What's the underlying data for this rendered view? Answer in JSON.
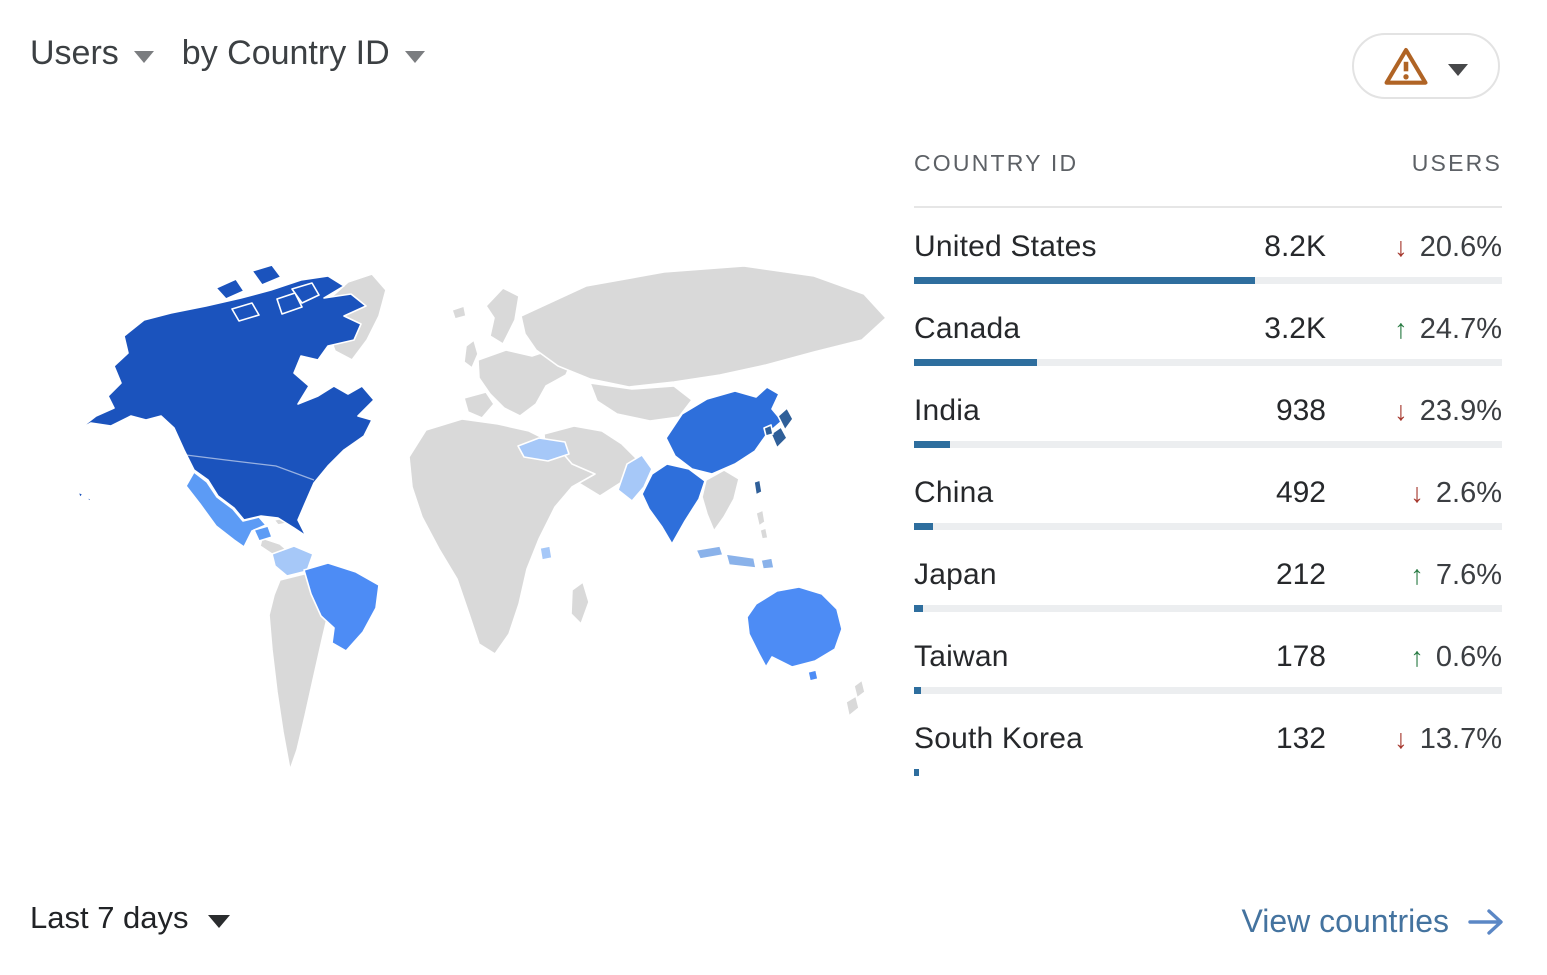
{
  "header": {
    "metric_label": "Users",
    "dimension_label": "by Country ID"
  },
  "warning_button": {
    "icon": "warning-triangle-icon",
    "caret_icon": "chevron-down-icon"
  },
  "table": {
    "columns": [
      "COUNTRY ID",
      "USERS"
    ],
    "rows": [
      {
        "country": "United States",
        "users": "8.2K",
        "arrow": "↓",
        "direction": "down",
        "change": "20.6%",
        "bar_pct": 58
      },
      {
        "country": "Canada",
        "users": "3.2K",
        "arrow": "↑",
        "direction": "up",
        "change": "24.7%",
        "bar_pct": 21
      },
      {
        "country": "India",
        "users": "938",
        "arrow": "↓",
        "direction": "down",
        "change": "23.9%",
        "bar_pct": 6.2
      },
      {
        "country": "China",
        "users": "492",
        "arrow": "↓",
        "direction": "down",
        "change": "2.6%",
        "bar_pct": 3.3
      },
      {
        "country": "Japan",
        "users": "212",
        "arrow": "↑",
        "direction": "up",
        "change": "7.6%",
        "bar_pct": 1.5
      },
      {
        "country": "Taiwan",
        "users": "178",
        "arrow": "↑",
        "direction": "up",
        "change": "0.6%",
        "bar_pct": 1.2
      },
      {
        "country": "South Korea",
        "users": "132",
        "arrow": "↓",
        "direction": "down",
        "change": "13.7%",
        "bar_pct": 0.9
      }
    ]
  },
  "map": {
    "type": "choropleth-world",
    "metric": "Users",
    "shading": [
      {
        "region": "United States",
        "level": "highest"
      },
      {
        "region": "Canada",
        "level": "highest"
      },
      {
        "region": "China",
        "level": "high"
      },
      {
        "region": "India",
        "level": "high"
      },
      {
        "region": "Japan",
        "level": "high"
      },
      {
        "region": "South Korea",
        "level": "high"
      },
      {
        "region": "Taiwan",
        "level": "high"
      },
      {
        "region": "Brazil",
        "level": "medium"
      },
      {
        "region": "Australia",
        "level": "medium"
      },
      {
        "region": "Mexico",
        "level": "medium"
      },
      {
        "region": "Colombia",
        "level": "low"
      },
      {
        "region": "Turkey",
        "level": "low"
      },
      {
        "region": "Pakistan",
        "level": "low"
      },
      {
        "region": "Indonesia",
        "level": "low"
      },
      {
        "region": "Uganda",
        "level": "low"
      }
    ]
  },
  "footer": {
    "time_range": "Last 7 days",
    "action_label": "View countries",
    "action_icon": "arrow-right-icon"
  },
  "icons": {
    "warning": "warning-triangle-icon",
    "caret": "chevron-down-icon",
    "arrow_right": "arrow-right-icon",
    "change_up": "arrow-up-icon",
    "change_down": "arrow-down-icon"
  },
  "colors": {
    "accent_bar": "#2e6e9e",
    "link_text": "#44739f",
    "link_arrow": "#5b87c5",
    "negative_red": "#a63a30",
    "positive_green": "#2c7d46",
    "warning_orange": "#b06425",
    "map_level_1": "#1b53bd",
    "map_level_2": "#2e6fdb",
    "map_japan": "#2f5f99",
    "map_level_3": "#4d8cf5",
    "map_mexico": "#5c9bf5",
    "map_level_4": "#a6c8f8",
    "map_indonesia": "#8ab2ea",
    "map_neutral": "#d9d9d9"
  }
}
